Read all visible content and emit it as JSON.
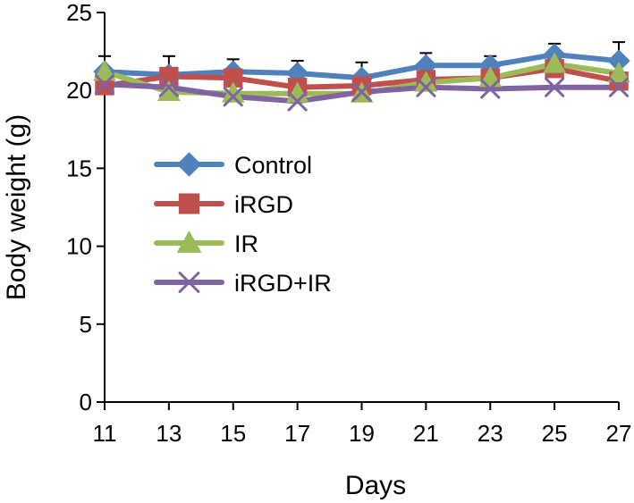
{
  "chart_data": {
    "type": "line",
    "title": "",
    "xlabel": "Days",
    "ylabel": "Body weight (g)",
    "x": [
      11,
      13,
      15,
      17,
      19,
      21,
      23,
      25,
      27
    ],
    "x_tick_labels": [
      "11",
      "13",
      "15",
      "17",
      "19",
      "21",
      "23",
      "25",
      "27"
    ],
    "ylim": [
      0,
      25
    ],
    "y_ticks": [
      0,
      5,
      10,
      15,
      20,
      25
    ],
    "y_tick_labels": [
      "0",
      "5",
      "10",
      "15",
      "20",
      "25"
    ],
    "grid": false,
    "legend_position": "center-left",
    "series": [
      {
        "name": "Control",
        "color": "#4f81bd",
        "marker": "diamond",
        "values": [
          21.2,
          21.0,
          21.2,
          21.1,
          20.8,
          21.6,
          21.6,
          22.3,
          21.9
        ],
        "errors": [
          1.0,
          1.2,
          0.8,
          0.8,
          1.0,
          0.8,
          0.6,
          0.7,
          1.2
        ]
      },
      {
        "name": "iRGD",
        "color": "#c0504d",
        "marker": "square",
        "values": [
          20.3,
          20.9,
          20.8,
          20.2,
          20.3,
          20.7,
          20.8,
          21.4,
          20.6
        ],
        "errors": [
          0.0,
          0.0,
          0.0,
          0.0,
          0.0,
          0.0,
          0.0,
          0.0,
          0.0
        ]
      },
      {
        "name": "IR",
        "color": "#9bbb59",
        "marker": "triangle",
        "values": [
          21.2,
          19.9,
          19.8,
          19.8,
          19.8,
          20.5,
          20.8,
          21.7,
          21.1
        ],
        "errors": [
          0.0,
          0.0,
          0.0,
          0.0,
          0.0,
          0.0,
          0.0,
          0.0,
          0.0
        ]
      },
      {
        "name": "iRGD+IR",
        "color": "#8064a2",
        "marker": "x",
        "values": [
          20.4,
          20.2,
          19.6,
          19.3,
          19.9,
          20.2,
          20.1,
          20.2,
          20.2
        ],
        "errors": [
          0.0,
          0.0,
          0.0,
          0.0,
          0.0,
          0.0,
          0.0,
          0.0,
          0.0
        ]
      }
    ]
  }
}
